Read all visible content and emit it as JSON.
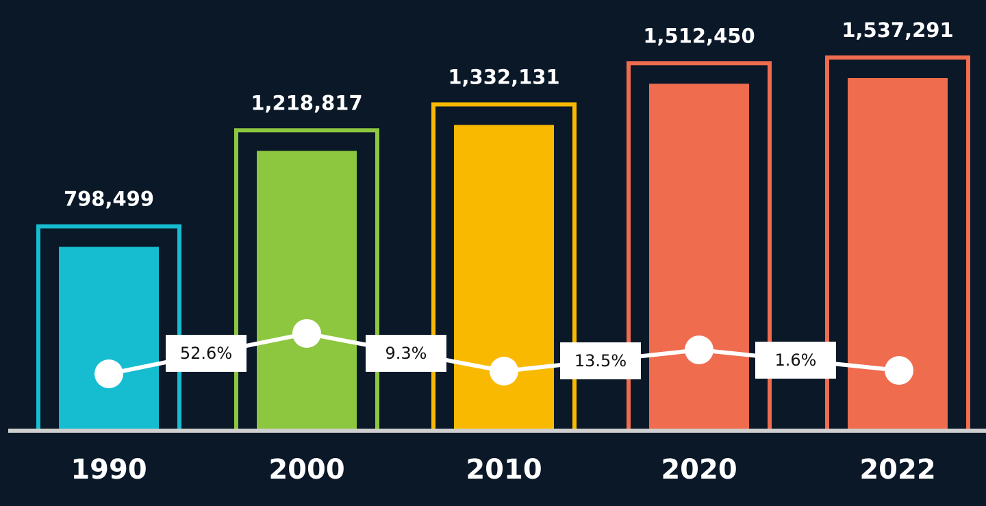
{
  "chart_data": {
    "type": "bar",
    "categories": [
      "1990",
      "2000",
      "2010",
      "2020",
      "2022"
    ],
    "values": [
      798499,
      1218817,
      1332131,
      1512450,
      1537291
    ],
    "value_labels": [
      "798,499",
      "1,218,817",
      "1,332,131",
      "1,512,450",
      "1,537,291"
    ],
    "colors": [
      "#16bcd0",
      "#8dc63f",
      "#f9b900",
      "#ef6c4e",
      "#ef6c4e"
    ],
    "annotations": [
      "52.6%",
      "9.3%",
      "13.5%",
      "1.6%"
    ]
  }
}
